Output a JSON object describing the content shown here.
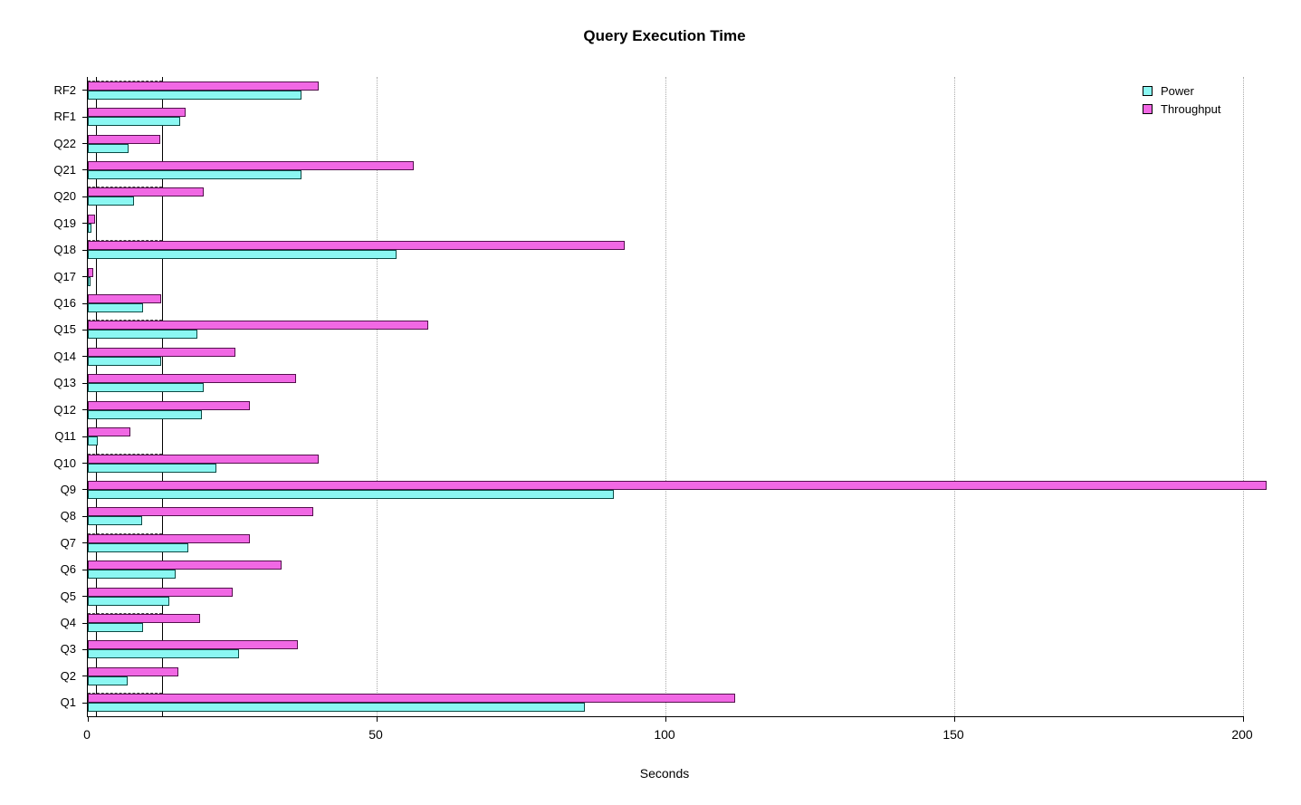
{
  "chart_data": {
    "type": "bar",
    "orientation": "horizontal",
    "title": "Query Execution Time",
    "xlabel": "Seconds",
    "xlim": [
      0,
      200
    ],
    "x_ticks": [
      0,
      50,
      100,
      150,
      200
    ],
    "grid": "vertical dotted gridlines at x ticks",
    "legend_position": "top-right",
    "categories_top_to_bottom": [
      "RF2",
      "RF1",
      "Q22",
      "Q21",
      "Q20",
      "Q19",
      "Q18",
      "Q17",
      "Q16",
      "Q15",
      "Q14",
      "Q13",
      "Q12",
      "Q11",
      "Q10",
      "Q9",
      "Q8",
      "Q7",
      "Q6",
      "Q5",
      "Q4",
      "Q3",
      "Q2",
      "Q1"
    ],
    "series": [
      {
        "name": "Power",
        "fill": "#8BF7F2",
        "border": "#0c4a44",
        "values": [
          37,
          16,
          7,
          37,
          8,
          0.7,
          53.5,
          0.5,
          9.6,
          19,
          12.7,
          20,
          19.7,
          1.7,
          22.3,
          91,
          9.4,
          17.4,
          15.2,
          14.1,
          9.6,
          26.2,
          6.9,
          86
        ]
      },
      {
        "name": "Throughput",
        "fill": "#F168E4",
        "border": "#53104c",
        "values": [
          40,
          17,
          12.5,
          56.5,
          20,
          1.3,
          93,
          0.9,
          12.7,
          59,
          25.5,
          36,
          28,
          7.4,
          40,
          204,
          39,
          28,
          33.5,
          25,
          19.4,
          36.4,
          15.7,
          112
        ]
      }
    ],
    "reference_lines_x": [
      1.4,
      12.8
    ],
    "dashed_guide_rows": [
      "RF2",
      "Q20",
      "Q18",
      "Q15",
      "Q10",
      "Q7",
      "Q4",
      "Q1"
    ]
  }
}
